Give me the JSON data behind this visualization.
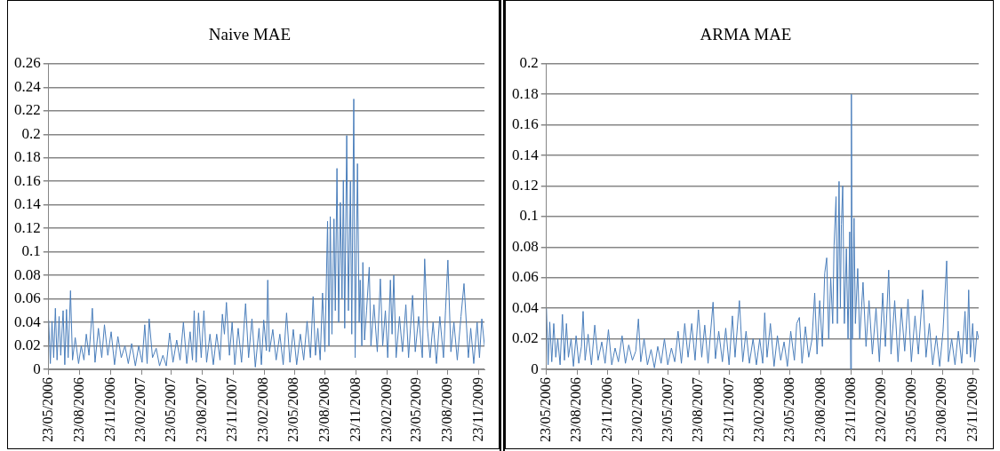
{
  "chart_data": [
    {
      "type": "line",
      "title": "Naive MAE",
      "legend": false,
      "marker": "none",
      "grid": "y",
      "xlim": [
        "2006-05-23",
        "2009-12-10"
      ],
      "ylim": [
        0,
        0.26
      ],
      "yticks": [
        0,
        0.02,
        0.04,
        0.06,
        0.08,
        0.1,
        0.12,
        0.14,
        0.16,
        0.18,
        0.2,
        0.22,
        0.24,
        0.26
      ],
      "xticks": [
        {
          "value": "2006-05-23",
          "label": "23/05/2006"
        },
        {
          "value": "2006-08-23",
          "label": "23/08/2006"
        },
        {
          "value": "2006-11-23",
          "label": "23/11/2006"
        },
        {
          "value": "2007-02-23",
          "label": "23/02/2007"
        },
        {
          "value": "2007-05-23",
          "label": "23/05/2007"
        },
        {
          "value": "2007-08-23",
          "label": "23/08/2007"
        },
        {
          "value": "2007-11-23",
          "label": "23/11/2007"
        },
        {
          "value": "2008-02-23",
          "label": "23/02/2008"
        },
        {
          "value": "2008-05-23",
          "label": "23/05/2008"
        },
        {
          "value": "2008-08-23",
          "label": "23/08/2008"
        },
        {
          "value": "2008-11-23",
          "label": "23/11/2008"
        },
        {
          "value": "2009-02-23",
          "label": "23/02/2009"
        },
        {
          "value": "2009-05-23",
          "label": "23/05/2009"
        },
        {
          "value": "2009-08-23",
          "label": "23/08/2009"
        },
        {
          "value": "2009-11-23",
          "label": "23/11/2009"
        }
      ],
      "x": [
        "2006-05-23",
        "2006-05-28",
        "2006-06-02",
        "2006-06-07",
        "2006-06-12",
        "2006-06-17",
        "2006-06-23",
        "2006-06-28",
        "2006-07-05",
        "2006-07-10",
        "2006-07-15",
        "2006-07-20",
        "2006-07-27",
        "2006-08-02",
        "2006-08-10",
        "2006-08-20",
        "2006-08-28",
        "2006-09-05",
        "2006-09-12",
        "2006-09-20",
        "2006-09-30",
        "2006-10-08",
        "2006-10-18",
        "2006-10-28",
        "2006-11-05",
        "2006-11-15",
        "2006-11-25",
        "2006-12-05",
        "2006-12-15",
        "2006-12-25",
        "2007-01-05",
        "2007-01-15",
        "2007-01-25",
        "2007-02-05",
        "2007-02-15",
        "2007-02-25",
        "2007-03-05",
        "2007-03-12",
        "2007-03-18",
        "2007-03-28",
        "2007-04-08",
        "2007-04-18",
        "2007-04-28",
        "2007-05-08",
        "2007-05-18",
        "2007-05-28",
        "2007-06-08",
        "2007-06-18",
        "2007-06-28",
        "2007-07-08",
        "2007-07-18",
        "2007-07-25",
        "2007-07-30",
        "2007-08-05",
        "2007-08-12",
        "2007-08-20",
        "2007-08-28",
        "2007-09-05",
        "2007-09-15",
        "2007-09-25",
        "2007-10-05",
        "2007-10-15",
        "2007-10-22",
        "2007-10-28",
        "2007-11-03",
        "2007-11-12",
        "2007-11-20",
        "2007-11-28",
        "2007-12-08",
        "2007-12-18",
        "2007-12-30",
        "2008-01-08",
        "2008-01-18",
        "2008-01-28",
        "2008-02-08",
        "2008-02-15",
        "2008-02-22",
        "2008-03-01",
        "2008-03-05",
        "2008-03-10",
        "2008-03-20",
        "2008-03-30",
        "2008-04-10",
        "2008-04-20",
        "2008-04-30",
        "2008-05-10",
        "2008-05-20",
        "2008-05-30",
        "2008-06-10",
        "2008-06-20",
        "2008-06-30",
        "2008-07-10",
        "2008-07-18",
        "2008-07-25",
        "2008-08-01",
        "2008-08-08",
        "2008-08-15",
        "2008-08-22",
        "2008-08-30",
        "2008-09-03",
        "2008-09-07",
        "2008-09-12",
        "2008-09-18",
        "2008-09-22",
        "2008-09-27",
        "2008-10-02",
        "2008-10-07",
        "2008-10-12",
        "2008-10-16",
        "2008-10-20",
        "2008-10-26",
        "2008-10-31",
        "2008-11-06",
        "2008-11-10",
        "2008-11-16",
        "2008-11-20",
        "2008-11-27",
        "2008-12-02",
        "2008-12-05",
        "2008-12-10",
        "2008-12-13",
        "2008-12-18",
        "2008-12-24",
        "2009-01-01",
        "2009-01-06",
        "2009-01-15",
        "2009-01-25",
        "2009-02-03",
        "2009-02-10",
        "2009-02-18",
        "2009-02-25",
        "2009-03-05",
        "2009-03-10",
        "2009-03-15",
        "2009-03-22",
        "2009-04-01",
        "2009-04-10",
        "2009-04-20",
        "2009-04-28",
        "2009-05-10",
        "2009-05-18",
        "2009-05-28",
        "2009-06-08",
        "2009-06-15",
        "2009-06-23",
        "2009-07-01",
        "2009-07-10",
        "2009-07-20",
        "2009-07-30",
        "2009-08-10",
        "2009-08-16",
        "2009-08-23",
        "2009-09-01",
        "2009-09-10",
        "2009-09-20",
        "2009-10-01",
        "2009-10-10",
        "2009-10-23",
        "2009-10-30",
        "2009-11-08",
        "2009-11-18",
        "2009-11-25",
        "2009-12-02",
        "2009-12-10"
      ],
      "series": [
        {
          "color": "#4a7ebb",
          "values": [
            0.042,
            0.005,
            0.041,
            0.01,
            0.052,
            0.008,
            0.045,
            0.012,
            0.05,
            0.004,
            0.051,
            0.01,
            0.067,
            0.008,
            0.027,
            0.005,
            0.02,
            0.008,
            0.03,
            0.012,
            0.052,
            0.006,
            0.035,
            0.01,
            0.038,
            0.012,
            0.032,
            0.004,
            0.028,
            0.01,
            0.02,
            0.005,
            0.022,
            0.003,
            0.02,
            0.006,
            0.038,
            0.005,
            0.043,
            0.01,
            0.018,
            0.003,
            0.012,
            0.003,
            0.031,
            0.006,
            0.025,
            0.008,
            0.04,
            0.005,
            0.032,
            0.008,
            0.05,
            0.006,
            0.048,
            0.01,
            0.05,
            0.006,
            0.03,
            0.004,
            0.03,
            0.008,
            0.047,
            0.03,
            0.057,
            0.012,
            0.04,
            0.004,
            0.035,
            0.006,
            0.056,
            0.01,
            0.043,
            0.002,
            0.035,
            0.004,
            0.042,
            0.016,
            0.076,
            0.015,
            0.034,
            0.008,
            0.03,
            0.004,
            0.048,
            0.006,
            0.034,
            0.004,
            0.03,
            0.008,
            0.041,
            0.01,
            0.062,
            0.012,
            0.035,
            0.008,
            0.065,
            0.015,
            0.126,
            0.02,
            0.13,
            0.03,
            0.128,
            0.05,
            0.171,
            0.04,
            0.142,
            0.06,
            0.161,
            0.035,
            0.199,
            0.05,
            0.16,
            0.03,
            0.23,
            0.01,
            0.175,
            0.04,
            0.076,
            0.02,
            0.091,
            0.025,
            0.05,
            0.087,
            0.02,
            0.055,
            0.015,
            0.077,
            0.02,
            0.05,
            0.01,
            0.076,
            0.03,
            0.08,
            0.01,
            0.045,
            0.015,
            0.055,
            0.01,
            0.063,
            0.015,
            0.045,
            0.01,
            0.094,
            0.035,
            0.01,
            0.04,
            0.005,
            0.045,
            0.01,
            0.05,
            0.093,
            0.015,
            0.04,
            0.008,
            0.045,
            0.073,
            0.01,
            0.035,
            0.005,
            0.04,
            0.01,
            0.043,
            0.02
          ]
        }
      ]
    },
    {
      "type": "line",
      "title": "ARMA MAE",
      "legend": false,
      "marker": "none",
      "grid": "y",
      "xlim": [
        "2006-05-23",
        "2009-12-10"
      ],
      "ylim": [
        0,
        0.2
      ],
      "yticks": [
        0,
        0.02,
        0.04,
        0.06,
        0.08,
        0.1,
        0.12,
        0.14,
        0.16,
        0.18,
        0.2
      ],
      "xticks": [
        {
          "value": "2006-05-23",
          "label": "23/05/2006"
        },
        {
          "value": "2006-08-23",
          "label": "23/08/2006"
        },
        {
          "value": "2006-11-23",
          "label": "23/11/2006"
        },
        {
          "value": "2007-02-23",
          "label": "23/02/2007"
        },
        {
          "value": "2007-05-23",
          "label": "23/05/2007"
        },
        {
          "value": "2007-08-23",
          "label": "23/08/2007"
        },
        {
          "value": "2007-11-23",
          "label": "23/11/2007"
        },
        {
          "value": "2008-02-23",
          "label": "23/02/2008"
        },
        {
          "value": "2008-05-23",
          "label": "23/05/2008"
        },
        {
          "value": "2008-08-23",
          "label": "23/08/2008"
        },
        {
          "value": "2008-11-23",
          "label": "23/11/2008"
        },
        {
          "value": "2009-02-23",
          "label": "23/02/2009"
        },
        {
          "value": "2009-05-23",
          "label": "23/05/2009"
        },
        {
          "value": "2009-08-23",
          "label": "23/08/2009"
        },
        {
          "value": "2009-11-23",
          "label": "23/11/2009"
        }
      ],
      "x": [
        "2006-05-23",
        "2006-05-28",
        "2006-06-02",
        "2006-06-08",
        "2006-06-14",
        "2006-06-20",
        "2006-06-26",
        "2006-07-03",
        "2006-07-10",
        "2006-07-16",
        "2006-07-22",
        "2006-07-28",
        "2006-08-05",
        "2006-08-12",
        "2006-08-20",
        "2006-08-28",
        "2006-09-05",
        "2006-09-10",
        "2006-09-16",
        "2006-09-25",
        "2006-10-05",
        "2006-10-15",
        "2006-10-25",
        "2006-11-05",
        "2006-11-15",
        "2006-11-25",
        "2006-12-05",
        "2006-12-15",
        "2006-12-25",
        "2007-01-05",
        "2007-01-15",
        "2007-01-25",
        "2007-02-05",
        "2007-02-15",
        "2007-02-23",
        "2007-03-02",
        "2007-03-12",
        "2007-03-22",
        "2007-04-02",
        "2007-04-12",
        "2007-04-22",
        "2007-05-02",
        "2007-05-12",
        "2007-05-22",
        "2007-06-02",
        "2007-06-12",
        "2007-06-22",
        "2007-07-02",
        "2007-07-12",
        "2007-07-22",
        "2007-08-02",
        "2007-08-12",
        "2007-08-22",
        "2007-09-01",
        "2007-09-10",
        "2007-09-20",
        "2007-10-05",
        "2007-10-12",
        "2007-10-22",
        "2007-11-02",
        "2007-11-12",
        "2007-11-22",
        "2007-12-02",
        "2007-12-10",
        "2007-12-23",
        "2008-01-02",
        "2008-01-12",
        "2008-01-22",
        "2008-02-02",
        "2008-02-12",
        "2008-02-22",
        "2008-03-02",
        "2008-03-08",
        "2008-03-15",
        "2008-03-25",
        "2008-04-05",
        "2008-04-15",
        "2008-04-25",
        "2008-05-05",
        "2008-05-15",
        "2008-05-25",
        "2008-06-05",
        "2008-06-12",
        "2008-06-20",
        "2008-06-28",
        "2008-07-08",
        "2008-07-18",
        "2008-07-28",
        "2008-08-05",
        "2008-08-12",
        "2008-08-20",
        "2008-08-28",
        "2008-09-04",
        "2008-09-10",
        "2008-09-16",
        "2008-09-22",
        "2008-09-28",
        "2008-10-02",
        "2008-10-08",
        "2008-10-12",
        "2008-10-17",
        "2008-10-21",
        "2008-10-24",
        "2008-10-28",
        "2008-11-02",
        "2008-11-08",
        "2008-11-13",
        "2008-11-18",
        "2008-11-21",
        "2008-11-23",
        "2008-11-26",
        "2008-12-01",
        "2008-12-05",
        "2008-12-12",
        "2008-12-18",
        "2008-12-28",
        "2009-01-06",
        "2009-01-15",
        "2009-01-25",
        "2009-02-05",
        "2009-02-15",
        "2009-02-25",
        "2009-03-05",
        "2009-03-15",
        "2009-03-22",
        "2009-04-02",
        "2009-04-12",
        "2009-04-22",
        "2009-05-02",
        "2009-05-12",
        "2009-05-22",
        "2009-06-02",
        "2009-06-12",
        "2009-06-25",
        "2009-07-05",
        "2009-07-15",
        "2009-07-25",
        "2009-08-05",
        "2009-08-15",
        "2009-08-25",
        "2009-09-05",
        "2009-09-10",
        "2009-09-20",
        "2009-09-30",
        "2009-10-10",
        "2009-10-20",
        "2009-10-30",
        "2009-11-05",
        "2009-11-10",
        "2009-11-15",
        "2009-11-22",
        "2009-11-28",
        "2009-12-05",
        "2009-12-10"
      ],
      "series": [
        {
          "color": "#4a7ebb",
          "values": [
            0.04,
            0.003,
            0.031,
            0.005,
            0.03,
            0.008,
            0.02,
            0.003,
            0.036,
            0.006,
            0.03,
            0.008,
            0.02,
            0.002,
            0.022,
            0.004,
            0.015,
            0.038,
            0.006,
            0.023,
            0.003,
            0.029,
            0.006,
            0.018,
            0.004,
            0.026,
            0.003,
            0.014,
            0.005,
            0.022,
            0.004,
            0.016,
            0.006,
            0.012,
            0.033,
            0.005,
            0.02,
            0.003,
            0.013,
            0.001,
            0.015,
            0.004,
            0.02,
            0.003,
            0.014,
            0.005,
            0.025,
            0.004,
            0.03,
            0.008,
            0.03,
            0.006,
            0.039,
            0.008,
            0.029,
            0.004,
            0.044,
            0.007,
            0.025,
            0.005,
            0.027,
            0.003,
            0.035,
            0.008,
            0.045,
            0.005,
            0.025,
            0.004,
            0.02,
            0.003,
            0.02,
            0.004,
            0.037,
            0.008,
            0.03,
            0.002,
            0.022,
            0.006,
            0.018,
            0.002,
            0.025,
            0.006,
            0.03,
            0.034,
            0.004,
            0.028,
            0.008,
            0.02,
            0.05,
            0.01,
            0.045,
            0.015,
            0.063,
            0.073,
            0.02,
            0.06,
            0.03,
            0.081,
            0.113,
            0.03,
            0.123,
            0.04,
            0.095,
            0.12,
            0.03,
            0.079,
            0.02,
            0.09,
            0.0,
            0.18,
            0.02,
            0.099,
            0.03,
            0.066,
            0.02,
            0.057,
            0.015,
            0.045,
            0.01,
            0.04,
            0.005,
            0.05,
            0.015,
            0.065,
            0.01,
            0.045,
            0.005,
            0.04,
            0.012,
            0.046,
            0.005,
            0.035,
            0.01,
            0.052,
            0.008,
            0.03,
            0.003,
            0.022,
            0.002,
            0.025,
            0.071,
            0.005,
            0.02,
            0.003,
            0.025,
            0.004,
            0.038,
            0.01,
            0.052,
            0.008,
            0.03,
            0.005,
            0.025,
            0.02
          ]
        }
      ]
    }
  ]
}
